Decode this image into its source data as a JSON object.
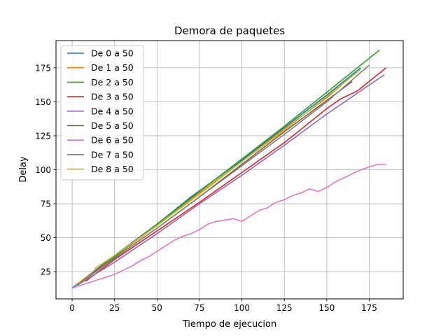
{
  "chart_data": {
    "type": "line",
    "title": "Demora de paquetes",
    "xlabel": "Tiempo de ejecucion",
    "ylabel": "Delay",
    "xlim": [
      -9.5,
      195
    ],
    "ylim": [
      5,
      195
    ],
    "xticks": [
      0,
      25,
      50,
      75,
      100,
      125,
      150,
      175
    ],
    "yticks": [
      25,
      50,
      75,
      100,
      125,
      150,
      175
    ],
    "grid": true,
    "legend_position": "upper-left",
    "series": [
      {
        "name": "De 0 a 50",
        "color": "#1f77b4",
        "x": [
          0,
          25,
          50,
          70,
          100,
          125,
          150,
          170
        ],
        "y": [
          13,
          37,
          60,
          80,
          107,
          131,
          155,
          175
        ]
      },
      {
        "name": "De 1 a 50",
        "color": "#ff7f0e",
        "x": [
          3,
          25,
          50,
          75,
          100,
          125,
          150,
          162
        ],
        "y": [
          16,
          36,
          59,
          83,
          106,
          130,
          153,
          166
        ]
      },
      {
        "name": "De 2 a 50",
        "color": "#2ca02c",
        "x": [
          5,
          25,
          50,
          75,
          100,
          125,
          150,
          181
        ],
        "y": [
          17,
          36,
          60,
          84,
          108,
          132,
          157,
          188
        ]
      },
      {
        "name": "De 3 a 50",
        "color": "#d62728",
        "x": [
          8,
          25,
          50,
          75,
          100,
          125,
          150,
          158,
          168,
          175,
          185
        ],
        "y": [
          18,
          34,
          55,
          76,
          98,
          120,
          145,
          152,
          158,
          165,
          175
        ]
      },
      {
        "name": "De 4 a 50",
        "color": "#9467bd",
        "x": [
          3,
          25,
          50,
          75,
          100,
          125,
          150,
          184
        ],
        "y": [
          15,
          32,
          53,
          75,
          96,
          118,
          141,
          170
        ]
      },
      {
        "name": "De 5 a 50",
        "color": "#8c564b",
        "x": [
          13,
          25,
          50,
          75,
          100,
          125,
          150,
          165
        ],
        "y": [
          25,
          35,
          57,
          80,
          104,
          128,
          151,
          165
        ]
      },
      {
        "name": "De 6 a 50",
        "color": "#e377c2",
        "x": [
          0,
          5,
          10,
          15,
          20,
          25,
          30,
          35,
          40,
          45,
          50,
          55,
          60,
          65,
          70,
          75,
          80,
          85,
          90,
          95,
          100,
          105,
          110,
          115,
          120,
          125,
          130,
          135,
          140,
          145,
          150,
          155,
          160,
          165,
          170,
          175,
          180,
          185
        ],
        "y": [
          13,
          15,
          17,
          19,
          21,
          23,
          26,
          29,
          33,
          36,
          40,
          44,
          48,
          51,
          53,
          56,
          60,
          62,
          63,
          64,
          62,
          66,
          70,
          72,
          76,
          78,
          81,
          83,
          86,
          84,
          87,
          91,
          94,
          97,
          100,
          102,
          104,
          104
        ]
      },
      {
        "name": "De 7 a 50",
        "color": "#7f7f7f",
        "x": [
          3,
          25,
          50,
          75,
          100,
          125,
          150,
          175
        ],
        "y": [
          15,
          35,
          57,
          80,
          103,
          126,
          150,
          177
        ]
      },
      {
        "name": "De 8 a 50",
        "color": "#bcbd22",
        "x": [
          13,
          25,
          50,
          75,
          100,
          125,
          150,
          170
        ],
        "y": [
          27,
          37,
          59,
          82,
          106,
          129,
          154,
          174
        ]
      }
    ]
  }
}
